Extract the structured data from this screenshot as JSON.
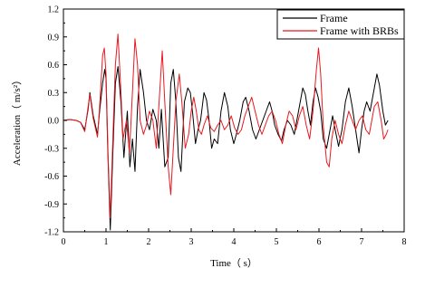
{
  "chart_data": {
    "type": "line",
    "title": "",
    "xlabel": "Time（ s）",
    "ylabel": "Acceleration（ m/s²）",
    "xlim": [
      0,
      8
    ],
    "ylim": [
      -1.2,
      1.2
    ],
    "x_ticks": [
      "0",
      "1",
      "2",
      "3",
      "4",
      "5",
      "6",
      "7",
      "8"
    ],
    "y_ticks": [
      "-1.2",
      "-0.9",
      "-0.6",
      "-0.3",
      "0.0",
      "0.3",
      "0.6",
      "0.9",
      "1.2"
    ],
    "grid": false,
    "legend_position": "top-right",
    "series": [
      {
        "name": "Frame",
        "color": "#000000",
        "points": [
          [
            0.0,
            0.0
          ],
          [
            0.15,
            0.01
          ],
          [
            0.3,
            0.0
          ],
          [
            0.4,
            -0.02
          ],
          [
            0.5,
            -0.1
          ],
          [
            0.58,
            0.12
          ],
          [
            0.62,
            0.3
          ],
          [
            0.7,
            0.05
          ],
          [
            0.8,
            -0.15
          ],
          [
            0.85,
            0.1
          ],
          [
            0.92,
            0.4
          ],
          [
            0.97,
            0.55
          ],
          [
            1.0,
            0.45
          ],
          [
            1.04,
            -0.3
          ],
          [
            1.1,
            -1.18
          ],
          [
            1.16,
            -0.35
          ],
          [
            1.22,
            0.4
          ],
          [
            1.28,
            0.58
          ],
          [
            1.35,
            0.2
          ],
          [
            1.42,
            -0.4
          ],
          [
            1.5,
            0.1
          ],
          [
            1.56,
            -0.5
          ],
          [
            1.62,
            -0.2
          ],
          [
            1.68,
            -0.55
          ],
          [
            1.74,
            0.15
          ],
          [
            1.8,
            0.55
          ],
          [
            1.88,
            0.3
          ],
          [
            1.95,
            0.0
          ],
          [
            2.02,
            -0.1
          ],
          [
            2.1,
            0.12
          ],
          [
            2.18,
            0.0
          ],
          [
            2.24,
            -0.3
          ],
          [
            2.3,
            0.12
          ],
          [
            2.38,
            -0.5
          ],
          [
            2.46,
            -0.4
          ],
          [
            2.52,
            0.4
          ],
          [
            2.58,
            0.55
          ],
          [
            2.64,
            0.2
          ],
          [
            2.7,
            -0.4
          ],
          [
            2.76,
            -0.55
          ],
          [
            2.84,
            0.2
          ],
          [
            2.92,
            0.35
          ],
          [
            2.98,
            0.3
          ],
          [
            3.04,
            0.05
          ],
          [
            3.1,
            -0.25
          ],
          [
            3.16,
            -0.1
          ],
          [
            3.22,
            0.0
          ],
          [
            3.3,
            0.3
          ],
          [
            3.36,
            0.22
          ],
          [
            3.42,
            0.0
          ],
          [
            3.48,
            -0.3
          ],
          [
            3.54,
            -0.2
          ],
          [
            3.62,
            -0.25
          ],
          [
            3.7,
            0.1
          ],
          [
            3.78,
            0.3
          ],
          [
            3.86,
            0.15
          ],
          [
            3.92,
            -0.1
          ],
          [
            4.0,
            -0.25
          ],
          [
            4.06,
            -0.15
          ],
          [
            4.14,
            0.0
          ],
          [
            4.22,
            0.2
          ],
          [
            4.28,
            0.25
          ],
          [
            4.36,
            0.1
          ],
          [
            4.44,
            -0.1
          ],
          [
            4.52,
            -0.2
          ],
          [
            4.6,
            -0.1
          ],
          [
            4.68,
            0.0
          ],
          [
            4.76,
            0.1
          ],
          [
            4.84,
            0.2
          ],
          [
            4.9,
            0.1
          ],
          [
            4.96,
            -0.05
          ],
          [
            5.04,
            -0.15
          ],
          [
            5.12,
            -0.22
          ],
          [
            5.18,
            -0.1
          ],
          [
            5.26,
            0.0
          ],
          [
            5.34,
            -0.05
          ],
          [
            5.42,
            -0.15
          ],
          [
            5.5,
            0.05
          ],
          [
            5.56,
            0.2
          ],
          [
            5.62,
            0.35
          ],
          [
            5.68,
            0.28
          ],
          [
            5.74,
            0.1
          ],
          [
            5.8,
            -0.05
          ],
          [
            5.86,
            0.2
          ],
          [
            5.92,
            0.35
          ],
          [
            5.98,
            0.25
          ],
          [
            6.04,
            0.1
          ],
          [
            6.1,
            -0.2
          ],
          [
            6.18,
            -0.3
          ],
          [
            6.26,
            -0.1
          ],
          [
            6.32,
            0.05
          ],
          [
            6.38,
            -0.1
          ],
          [
            6.46,
            -0.28
          ],
          [
            6.54,
            -0.1
          ],
          [
            6.62,
            0.2
          ],
          [
            6.7,
            0.35
          ],
          [
            6.78,
            0.15
          ],
          [
            6.86,
            -0.1
          ],
          [
            6.94,
            -0.35
          ],
          [
            7.0,
            -0.1
          ],
          [
            7.06,
            0.1
          ],
          [
            7.12,
            0.2
          ],
          [
            7.2,
            0.1
          ],
          [
            7.28,
            0.3
          ],
          [
            7.36,
            0.5
          ],
          [
            7.42,
            0.38
          ],
          [
            7.5,
            0.1
          ],
          [
            7.56,
            -0.05
          ],
          [
            7.62,
            0.0
          ]
        ]
      },
      {
        "name": "Frame with BRBs",
        "color": "#e8191f",
        "points": [
          [
            0.0,
            0.0
          ],
          [
            0.15,
            0.01
          ],
          [
            0.3,
            0.0
          ],
          [
            0.4,
            -0.02
          ],
          [
            0.5,
            -0.12
          ],
          [
            0.58,
            0.15
          ],
          [
            0.62,
            0.28
          ],
          [
            0.7,
            0.02
          ],
          [
            0.8,
            -0.18
          ],
          [
            0.85,
            0.15
          ],
          [
            0.92,
            0.7
          ],
          [
            0.96,
            0.78
          ],
          [
            1.0,
            0.5
          ],
          [
            1.05,
            -0.4
          ],
          [
            1.1,
            -1.05
          ],
          [
            1.16,
            -0.2
          ],
          [
            1.22,
            0.6
          ],
          [
            1.28,
            0.93
          ],
          [
            1.34,
            0.4
          ],
          [
            1.4,
            -0.2
          ],
          [
            1.48,
            0.0
          ],
          [
            1.55,
            -0.35
          ],
          [
            1.62,
            0.3
          ],
          [
            1.68,
            0.88
          ],
          [
            1.74,
            0.6
          ],
          [
            1.8,
            0.0
          ],
          [
            1.88,
            -0.15
          ],
          [
            1.95,
            -0.05
          ],
          [
            2.02,
            0.1
          ],
          [
            2.1,
            0.0
          ],
          [
            2.18,
            -0.3
          ],
          [
            2.26,
            0.3
          ],
          [
            2.32,
            0.75
          ],
          [
            2.38,
            0.2
          ],
          [
            2.46,
            -0.5
          ],
          [
            2.52,
            -0.8
          ],
          [
            2.58,
            -0.3
          ],
          [
            2.64,
            0.2
          ],
          [
            2.72,
            0.5
          ],
          [
            2.78,
            0.2
          ],
          [
            2.86,
            -0.3
          ],
          [
            2.94,
            -0.15
          ],
          [
            3.0,
            0.1
          ],
          [
            3.06,
            0.25
          ],
          [
            3.12,
            0.1
          ],
          [
            3.18,
            -0.1
          ],
          [
            3.24,
            -0.15
          ],
          [
            3.3,
            -0.05
          ],
          [
            3.38,
            0.05
          ],
          [
            3.46,
            -0.08
          ],
          [
            3.54,
            -0.12
          ],
          [
            3.62,
            -0.05
          ],
          [
            3.7,
            0.0
          ],
          [
            3.78,
            -0.1
          ],
          [
            3.86,
            -0.05
          ],
          [
            3.94,
            0.05
          ],
          [
            4.02,
            -0.08
          ],
          [
            4.1,
            -0.15
          ],
          [
            4.18,
            -0.1
          ],
          [
            4.26,
            0.05
          ],
          [
            4.34,
            0.15
          ],
          [
            4.42,
            0.25
          ],
          [
            4.5,
            0.1
          ],
          [
            4.58,
            -0.05
          ],
          [
            4.66,
            -0.15
          ],
          [
            4.74,
            -0.05
          ],
          [
            4.82,
            0.05
          ],
          [
            4.9,
            0.1
          ],
          [
            4.98,
            0.0
          ],
          [
            5.06,
            -0.15
          ],
          [
            5.14,
            -0.25
          ],
          [
            5.22,
            -0.05
          ],
          [
            5.3,
            0.1
          ],
          [
            5.38,
            0.05
          ],
          [
            5.46,
            -0.1
          ],
          [
            5.54,
            0.05
          ],
          [
            5.62,
            0.15
          ],
          [
            5.7,
            -0.05
          ],
          [
            5.78,
            -0.2
          ],
          [
            5.86,
            0.1
          ],
          [
            5.94,
            0.55
          ],
          [
            5.99,
            0.78
          ],
          [
            6.04,
            0.5
          ],
          [
            6.1,
            -0.05
          ],
          [
            6.18,
            -0.45
          ],
          [
            6.24,
            -0.5
          ],
          [
            6.3,
            -0.2
          ],
          [
            6.38,
            0.0
          ],
          [
            6.46,
            -0.15
          ],
          [
            6.54,
            -0.25
          ],
          [
            6.62,
            -0.05
          ],
          [
            6.7,
            0.1
          ],
          [
            6.78,
            0.0
          ],
          [
            6.86,
            -0.1
          ],
          [
            6.94,
            0.0
          ],
          [
            7.02,
            0.05
          ],
          [
            7.1,
            -0.1
          ],
          [
            7.18,
            -0.15
          ],
          [
            7.24,
            0.0
          ],
          [
            7.3,
            0.15
          ],
          [
            7.38,
            0.2
          ],
          [
            7.46,
            0.0
          ],
          [
            7.52,
            -0.2
          ],
          [
            7.58,
            -0.15
          ],
          [
            7.62,
            -0.1
          ]
        ]
      }
    ]
  }
}
